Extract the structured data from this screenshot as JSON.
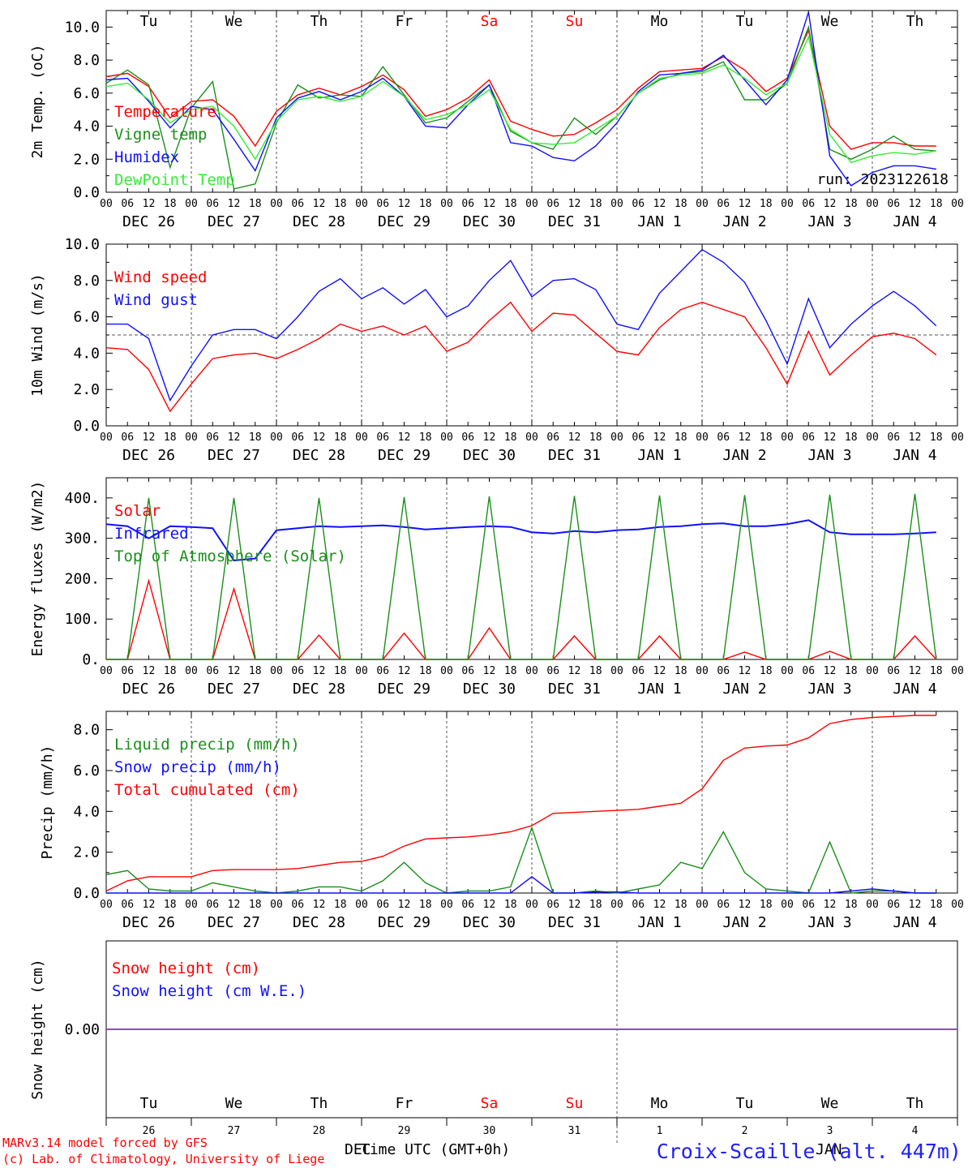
{
  "colors": {
    "red": "#ff0000",
    "green": "#1a8f1a",
    "blue": "#1010ff",
    "lime": "#33ee33",
    "violet": "#8a4fb5",
    "grid": "#555555"
  },
  "days": [
    {
      "name": "Tu",
      "color": "#000000",
      "date": "DEC 26",
      "num": "26"
    },
    {
      "name": "We",
      "color": "#000000",
      "date": "DEC 27",
      "num": "27"
    },
    {
      "name": "Th",
      "color": "#000000",
      "date": "DEC 28",
      "num": "28"
    },
    {
      "name": "Fr",
      "color": "#000000",
      "date": "DEC 29",
      "num": "29"
    },
    {
      "name": "Sa",
      "color": "#ff0000",
      "date": "DEC 30",
      "num": "30"
    },
    {
      "name": "Su",
      "color": "#ff0000",
      "date": "DEC 31",
      "num": "31"
    },
    {
      "name": "Mo",
      "color": "#000000",
      "date": "JAN  1",
      "num": "1"
    },
    {
      "name": "Tu",
      "color": "#000000",
      "date": "JAN  2",
      "num": "2"
    },
    {
      "name": "We",
      "color": "#000000",
      "date": "JAN  3",
      "num": "3"
    },
    {
      "name": "Th",
      "color": "#000000",
      "date": "JAN  4",
      "num": "4"
    }
  ],
  "hour_ticks": [
    "00",
    "06",
    "12",
    "18"
  ],
  "run_label": "run: 2023122618",
  "footer": {
    "model": "MARv3.14 model forced by GFS",
    "lab": "(c) Lab. of Climatology, University of Liege",
    "xlabel": "Time UTC (GMT+0h)",
    "month_left": "DEC",
    "month_right": "JAN",
    "station": "Croix-Scaille (alt. 447m)"
  },
  "chart_data": [
    {
      "type": "line",
      "ylabel": "2m Temp. (oC)",
      "ylim": [
        0,
        11
      ],
      "yticks": [
        0,
        2,
        4,
        6,
        8,
        10
      ],
      "ytick_labels": [
        "0.0",
        "2.0",
        "4.0",
        "6.0",
        "8.0",
        "10.0"
      ],
      "x_hours": [
        0,
        6,
        12,
        18,
        24,
        30,
        36,
        42,
        48,
        54,
        60,
        66,
        72,
        78,
        84,
        90,
        96,
        102,
        108,
        114,
        120,
        126,
        132,
        138,
        144,
        150,
        156,
        162,
        168,
        174,
        180,
        186,
        192,
        198,
        204,
        210,
        216,
        222,
        228,
        234
      ],
      "series": [
        {
          "name": "Temperature",
          "color": "#ff0000",
          "values": [
            7.0,
            7.2,
            6.4,
            4.5,
            5.5,
            5.6,
            4.6,
            2.8,
            4.9,
            5.9,
            6.3,
            5.9,
            6.4,
            7.1,
            6.2,
            4.6,
            5.0,
            5.7,
            6.8,
            4.3,
            3.8,
            3.4,
            3.5,
            4.2,
            5.0,
            6.3,
            7.3,
            7.4,
            7.5,
            8.2,
            7.4,
            6.1,
            6.9,
            9.8,
            4.0,
            2.6,
            3.0,
            3.0,
            2.8,
            2.8
          ]
        },
        {
          "name": "Vigne temp",
          "color": "#1a8f1a",
          "values": [
            6.6,
            7.4,
            6.5,
            1.5,
            5.1,
            6.7,
            0.2,
            0.5,
            4.2,
            6.5,
            5.7,
            5.9,
            5.8,
            7.6,
            5.9,
            4.2,
            4.5,
            5.5,
            6.5,
            3.7,
            3.0,
            2.6,
            4.5,
            3.5,
            4.6,
            6.0,
            6.8,
            7.2,
            7.3,
            7.9,
            5.6,
            5.6,
            6.6,
            10.0,
            2.6,
            2.0,
            2.6,
            3.4,
            2.6,
            2.5
          ]
        },
        {
          "name": "Humidex",
          "color": "#1010ff",
          "values": [
            6.8,
            6.9,
            5.5,
            3.9,
            5.2,
            5.0,
            3.2,
            1.3,
            4.5,
            5.7,
            6.1,
            5.6,
            6.1,
            6.9,
            5.8,
            4.0,
            3.9,
            5.3,
            6.5,
            3.0,
            2.8,
            2.1,
            1.9,
            2.8,
            4.2,
            6.1,
            7.1,
            7.2,
            7.4,
            8.3,
            6.8,
            5.3,
            6.8,
            10.9,
            2.2,
            0.4,
            1.2,
            1.6,
            1.6,
            1.4
          ]
        },
        {
          "name": "DewPoint Temp",
          "color": "#33ee33",
          "values": [
            6.4,
            6.6,
            5.6,
            4.2,
            5.0,
            5.2,
            4.0,
            2.0,
            4.3,
            5.6,
            5.8,
            5.5,
            5.8,
            6.7,
            5.8,
            4.4,
            4.7,
            5.3,
            6.2,
            3.8,
            3.0,
            2.9,
            3.0,
            3.8,
            4.6,
            6.0,
            6.9,
            7.1,
            7.2,
            7.7,
            6.9,
            5.9,
            6.6,
            9.4,
            3.5,
            1.8,
            2.2,
            2.4,
            2.3,
            2.5
          ]
        }
      ]
    },
    {
      "type": "line",
      "ylabel": "10m Wind (m/s)",
      "ylim": [
        0,
        10
      ],
      "yticks": [
        0,
        2,
        4,
        6,
        8,
        10
      ],
      "ytick_labels": [
        "0.0",
        "2.0",
        "4.0",
        "6.0",
        "8.0",
        "10.0"
      ],
      "hline": 5,
      "x_hours": [
        0,
        6,
        12,
        18,
        24,
        30,
        36,
        42,
        48,
        54,
        60,
        66,
        72,
        78,
        84,
        90,
        96,
        102,
        108,
        114,
        120,
        126,
        132,
        138,
        144,
        150,
        156,
        162,
        168,
        174,
        180,
        186,
        192,
        198,
        204,
        210,
        216,
        222,
        228,
        234
      ],
      "series": [
        {
          "name": "Wind speed",
          "color": "#ff0000",
          "values": [
            4.3,
            4.2,
            3.1,
            0.8,
            2.3,
            3.7,
            3.9,
            4.0,
            3.7,
            4.2,
            4.8,
            5.6,
            5.2,
            5.5,
            5.0,
            5.5,
            4.1,
            4.6,
            5.8,
            6.8,
            5.2,
            6.2,
            6.1,
            5.1,
            4.1,
            3.9,
            5.4,
            6.4,
            6.8,
            6.4,
            6.0,
            4.3,
            2.3,
            5.2,
            2.8,
            3.9,
            4.9,
            5.1,
            4.8,
            3.9
          ]
        },
        {
          "name": "Wind gust",
          "color": "#1010ff",
          "values": [
            5.6,
            5.6,
            4.8,
            1.4,
            3.3,
            5.0,
            5.3,
            5.3,
            4.8,
            6.0,
            7.4,
            8.1,
            7.0,
            7.6,
            6.7,
            7.5,
            6.0,
            6.6,
            8.0,
            9.1,
            7.1,
            8.0,
            8.1,
            7.5,
            5.6,
            5.3,
            7.3,
            8.5,
            9.7,
            9.0,
            7.9,
            5.8,
            3.4,
            7.0,
            4.3,
            5.6,
            6.6,
            7.4,
            6.6,
            5.5
          ]
        }
      ]
    },
    {
      "type": "line",
      "ylabel": "Energy fluxes (W/m2)",
      "ylim": [
        0,
        450
      ],
      "yticks": [
        0,
        100,
        200,
        300,
        400
      ],
      "ytick_labels": [
        "0.",
        "100.",
        "200.",
        "300.",
        "400."
      ],
      "x_hours": [
        0,
        6,
        12,
        18,
        24,
        30,
        36,
        42,
        48,
        54,
        60,
        66,
        72,
        78,
        84,
        90,
        96,
        102,
        108,
        114,
        120,
        126,
        132,
        138,
        144,
        150,
        156,
        162,
        168,
        174,
        180,
        186,
        192,
        198,
        204,
        210,
        216,
        222,
        228,
        234
      ],
      "series": [
        {
          "name": "Solar",
          "color": "#ff0000",
          "values": [
            0,
            0,
            195,
            0,
            0,
            0,
            175,
            0,
            0,
            0,
            60,
            0,
            0,
            0,
            65,
            0,
            0,
            0,
            78,
            0,
            0,
            0,
            58,
            0,
            0,
            0,
            58,
            0,
            0,
            0,
            18,
            0,
            0,
            0,
            20,
            0,
            0,
            0,
            58,
            0
          ]
        },
        {
          "name": "Infrared",
          "color": "#1010ff",
          "values": [
            335,
            330,
            300,
            330,
            328,
            325,
            245,
            250,
            320,
            325,
            330,
            328,
            330,
            332,
            328,
            322,
            325,
            328,
            330,
            328,
            315,
            312,
            318,
            315,
            320,
            322,
            328,
            330,
            335,
            337,
            330,
            330,
            335,
            345,
            315,
            310,
            310,
            310,
            312,
            315
          ]
        },
        {
          "name": "Top of Atmosphere (Solar)",
          "color": "#1a8f1a",
          "values": [
            0,
            0,
            400,
            0,
            0,
            0,
            400,
            0,
            0,
            0,
            400,
            0,
            0,
            0,
            402,
            0,
            0,
            0,
            404,
            0,
            0,
            0,
            405,
            0,
            0,
            0,
            406,
            0,
            0,
            0,
            407,
            0,
            0,
            0,
            408,
            0,
            0,
            0,
            410,
            0
          ]
        }
      ]
    },
    {
      "type": "line",
      "ylabel": "Precip (mm/h)",
      "ylim": [
        0,
        8.9
      ],
      "yticks": [
        0,
        2,
        4,
        6,
        8
      ],
      "ytick_labels": [
        "0.0",
        "2.0",
        "4.0",
        "6.0",
        "8.0"
      ],
      "x_hours": [
        0,
        6,
        12,
        18,
        24,
        30,
        36,
        42,
        48,
        54,
        60,
        66,
        72,
        78,
        84,
        90,
        96,
        102,
        108,
        114,
        120,
        126,
        132,
        138,
        144,
        150,
        156,
        162,
        168,
        174,
        180,
        186,
        192,
        198,
        204,
        210,
        216,
        222,
        228,
        234
      ],
      "series": [
        {
          "name": "Liquid precip (mm/h)",
          "color": "#1a8f1a",
          "values": [
            0.9,
            1.1,
            0.2,
            0.1,
            0.1,
            0.5,
            0.3,
            0.1,
            0.0,
            0.1,
            0.3,
            0.3,
            0.1,
            0.6,
            1.5,
            0.5,
            0.0,
            0.1,
            0.1,
            0.3,
            3.2,
            0.0,
            0.0,
            0.1,
            0.0,
            0.2,
            0.4,
            1.5,
            1.2,
            3.0,
            1.0,
            0.2,
            0.1,
            0.0,
            2.5,
            0.0,
            0.1,
            0.1,
            0.0,
            0.0
          ]
        },
        {
          "name": "Snow precip (mm/h)",
          "color": "#1010ff",
          "values": [
            0.0,
            0.0,
            0.0,
            0.0,
            0.0,
            0.0,
            0.0,
            0.0,
            0.0,
            0.0,
            0.0,
            0.0,
            0.0,
            0.0,
            0.0,
            0.0,
            0.0,
            0.0,
            0.0,
            0.0,
            0.8,
            0.0,
            0.0,
            0.05,
            0.05,
            0.0,
            0.0,
            0.0,
            0.0,
            0.0,
            0.0,
            0.0,
            0.0,
            0.0,
            0.0,
            0.1,
            0.2,
            0.1,
            0.0,
            0.0
          ]
        },
        {
          "name": "Total cumulated (cm)",
          "color": "#ff0000",
          "values": [
            0.1,
            0.6,
            0.8,
            0.8,
            0.8,
            1.1,
            1.15,
            1.15,
            1.15,
            1.2,
            1.35,
            1.5,
            1.55,
            1.8,
            2.3,
            2.65,
            2.7,
            2.75,
            2.85,
            3.0,
            3.3,
            3.9,
            3.95,
            4.0,
            4.05,
            4.1,
            4.25,
            4.4,
            5.1,
            6.5,
            7.1,
            7.2,
            7.25,
            7.6,
            8.3,
            8.5,
            8.6,
            8.65,
            8.7,
            8.7
          ]
        }
      ]
    },
    {
      "type": "line",
      "ylabel": "Snow height (cm)",
      "ylim": [
        -1,
        1
      ],
      "yticks": [
        0
      ],
      "ytick_labels": [
        "0.00"
      ],
      "x_hours": [
        0,
        240
      ],
      "series": [
        {
          "name": "Snow height (cm)",
          "color": "#ff0000",
          "values": [
            0,
            0
          ]
        },
        {
          "name": "Snow height (cm W.E.)",
          "color": "#1010ff",
          "values": [
            0,
            0
          ]
        }
      ]
    }
  ]
}
